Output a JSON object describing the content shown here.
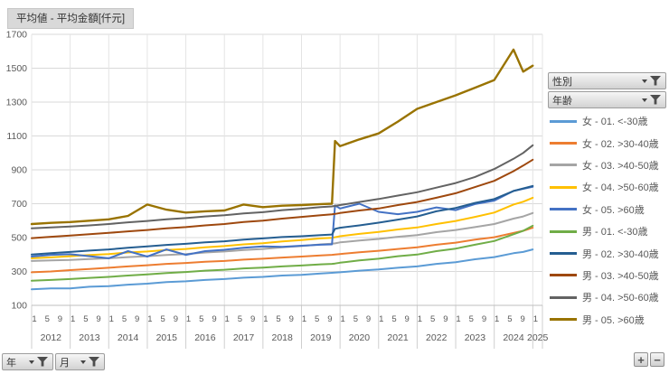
{
  "title": "平均値 - 平均金額[仟元]",
  "slicers": [
    {
      "label": "性別"
    },
    {
      "label": "年齢"
    }
  ],
  "axis_field_buttons": [
    {
      "label": "年"
    },
    {
      "label": "月"
    }
  ],
  "zoom_controls": {
    "plus": "+",
    "minus": "−"
  },
  "chart_data": {
    "type": "line",
    "title": "平均値 - 平均金額[仟元]",
    "ylabel": "平均金額[仟元]",
    "ylim": [
      100,
      1700
    ],
    "yticks": [
      100,
      300,
      500,
      700,
      900,
      1100,
      1300,
      1500,
      1700
    ],
    "grid": true,
    "legend_position": "right",
    "x_years": [
      2012,
      2013,
      2014,
      2015,
      2016,
      2017,
      2018,
      2019,
      2020,
      2021,
      2022,
      2023,
      2024,
      2025
    ],
    "month_tick_labels": [
      "1",
      "5",
      "9"
    ],
    "x": [
      2012.0,
      2012.5,
      2013.0,
      2013.5,
      2014.0,
      2014.5,
      2015.0,
      2015.5,
      2016.0,
      2016.5,
      2017.0,
      2017.5,
      2018.0,
      2018.5,
      2019.0,
      2019.5,
      2019.79,
      2019.87,
      2020.0,
      2020.5,
      2021.0,
      2021.5,
      2022.0,
      2022.5,
      2023.0,
      2023.5,
      2024.0,
      2024.5,
      2024.75,
      2025.0
    ],
    "series": [
      {
        "name": "女 - 01. <-30歳",
        "color": "#5B9BD5",
        "values": [
          195,
          200,
          200,
          210,
          213,
          222,
          228,
          237,
          242,
          250,
          255,
          263,
          268,
          276,
          280,
          288,
          292,
          293,
          295,
          305,
          312,
          322,
          330,
          345,
          355,
          372,
          385,
          408,
          415,
          430
        ]
      },
      {
        "name": "女 - 02. >30-40歳",
        "color": "#ED7D31",
        "values": [
          295,
          300,
          308,
          315,
          322,
          330,
          337,
          345,
          350,
          357,
          362,
          370,
          375,
          382,
          388,
          395,
          398,
          400,
          403,
          413,
          422,
          433,
          443,
          458,
          470,
          488,
          502,
          528,
          540,
          558
        ]
      },
      {
        "name": "女 - 03. >40-50歳",
        "color": "#A5A5A5",
        "values": [
          362,
          365,
          368,
          373,
          378,
          385,
          390,
          397,
          403,
          412,
          418,
          427,
          433,
          443,
          450,
          460,
          464,
          466,
          472,
          483,
          492,
          505,
          515,
          532,
          545,
          562,
          580,
          612,
          625,
          645
        ]
      },
      {
        "name": "女 - 04. >50-60歳",
        "color": "#FFC000",
        "values": [
          378,
          383,
          390,
          397,
          403,
          412,
          418,
          427,
          433,
          443,
          450,
          460,
          467,
          477,
          485,
          495,
          499,
          502,
          508,
          522,
          533,
          548,
          560,
          580,
          598,
          622,
          648,
          695,
          712,
          735
        ]
      },
      {
        "name": "女 - 05. >60歳",
        "color": "#4472C4",
        "values": [
          388,
          398,
          402,
          390,
          378,
          420,
          388,
          430,
          398,
          420,
          428,
          440,
          448,
          445,
          452,
          458,
          460,
          690,
          672,
          700,
          652,
          638,
          652,
          678,
          662,
          698,
          718,
          775,
          788,
          800
        ]
      },
      {
        "name": "男 - 01. <-30歳",
        "color": "#70AD47",
        "values": [
          245,
          250,
          255,
          262,
          268,
          276,
          283,
          291,
          297,
          305,
          310,
          318,
          323,
          330,
          335,
          342,
          345,
          347,
          352,
          365,
          375,
          390,
          400,
          420,
          435,
          458,
          480,
          520,
          540,
          570
        ]
      },
      {
        "name": "男 - 02. >30-40歳",
        "color": "#255E91",
        "values": [
          400,
          408,
          415,
          423,
          430,
          440,
          448,
          457,
          463,
          472,
          478,
          488,
          495,
          503,
          508,
          515,
          518,
          552,
          558,
          572,
          588,
          606,
          625,
          655,
          675,
          705,
          728,
          775,
          790,
          805
        ]
      },
      {
        "name": "男 - 03. >40-50歳",
        "color": "#9E480E",
        "values": [
          497,
          505,
          512,
          520,
          528,
          537,
          545,
          555,
          562,
          572,
          580,
          592,
          600,
          612,
          622,
          632,
          637,
          640,
          645,
          660,
          672,
          692,
          710,
          735,
          762,
          798,
          835,
          892,
          925,
          960
        ]
      },
      {
        "name": "男 - 04. >50-60歳",
        "color": "#636363",
        "values": [
          555,
          560,
          565,
          572,
          580,
          590,
          598,
          608,
          615,
          625,
          632,
          643,
          650,
          662,
          670,
          680,
          684,
          687,
          692,
          710,
          728,
          748,
          768,
          795,
          822,
          858,
          905,
          965,
          1000,
          1045
        ]
      },
      {
        "name": "男 - 05. >60歳",
        "color": "#997300",
        "values": [
          580,
          587,
          592,
          600,
          608,
          628,
          695,
          665,
          648,
          655,
          660,
          695,
          680,
          688,
          692,
          698,
          700,
          1070,
          1040,
          1080,
          1115,
          1185,
          1260,
          1300,
          1340,
          1385,
          1430,
          1610,
          1480,
          1515
        ]
      }
    ]
  },
  "theme": {
    "grid_color": "#d9d9d9",
    "axis_color": "#bfbfbf",
    "tick_color": "#595959"
  }
}
